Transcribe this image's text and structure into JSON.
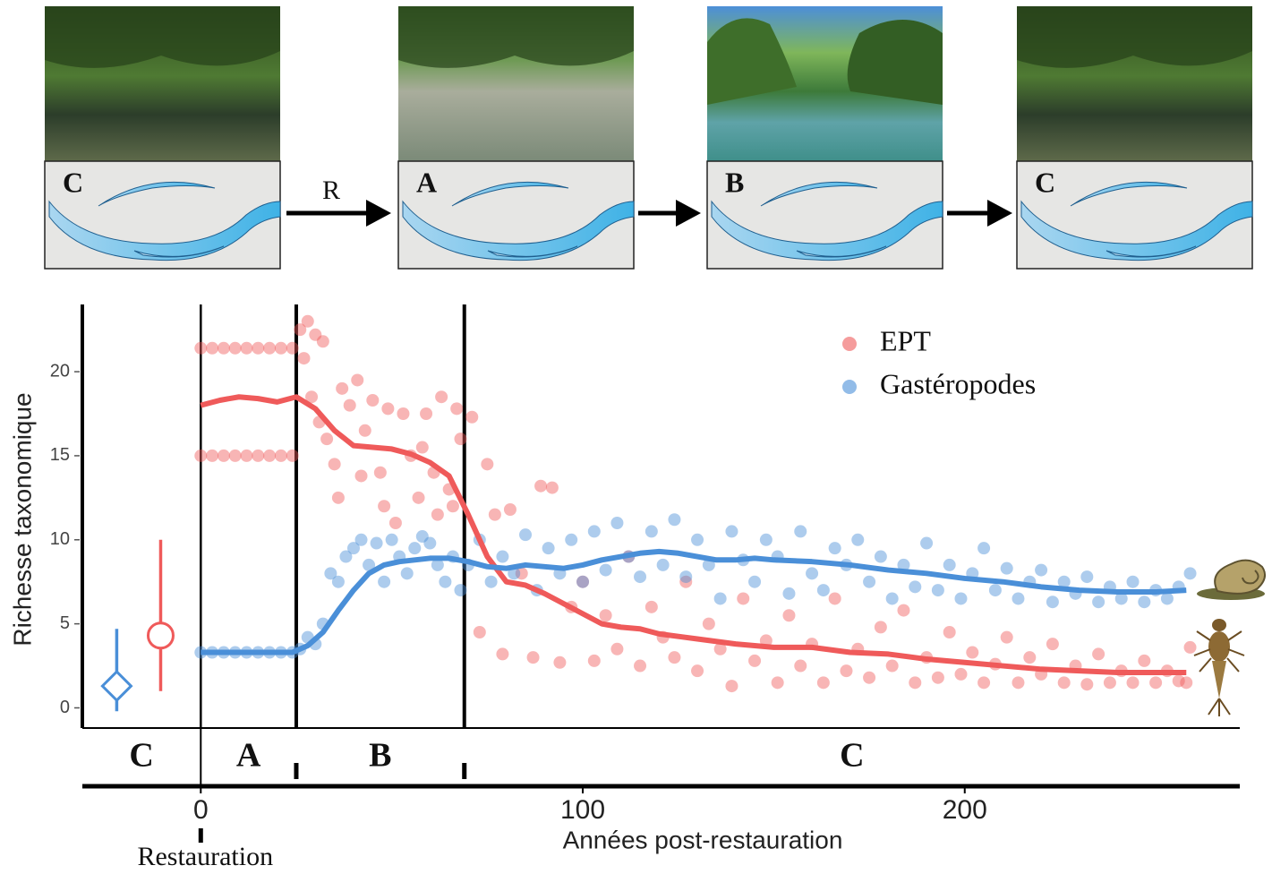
{
  "panel_labels": [
    "C",
    "A",
    "B",
    "C"
  ],
  "transition_label": "R",
  "chart_data": {
    "type": "scatter",
    "xlabel": "Années post-restauration",
    "ylabel": "Richesse taxonomique",
    "xlim": [
      -31,
      272
    ],
    "ylim": [
      -1.2,
      24
    ],
    "xticks": [
      0,
      100,
      200
    ],
    "yticks": [
      0,
      5,
      10,
      15,
      20
    ],
    "legend": "top-right",
    "event": {
      "x": 0,
      "label": "Restauration"
    },
    "phase_boundaries": [
      0,
      25,
      69
    ],
    "phase_labels": [
      "C",
      "A",
      "B",
      "C"
    ],
    "series": [
      {
        "name": "EPT",
        "color": "#ef5a5a",
        "reference": {
          "x": -10.5,
          "value": 4.3,
          "low": 1,
          "high": 10,
          "marker": "circle"
        },
        "points": [
          [
            0,
            21.4
          ],
          [
            3,
            21.4
          ],
          [
            6,
            21.4
          ],
          [
            9,
            21.4
          ],
          [
            12,
            21.4
          ],
          [
            15,
            21.4
          ],
          [
            18,
            21.4
          ],
          [
            21,
            21.4
          ],
          [
            24,
            21.4
          ],
          [
            0,
            15
          ],
          [
            3,
            15
          ],
          [
            6,
            15
          ],
          [
            9,
            15
          ],
          [
            12,
            15
          ],
          [
            15,
            15
          ],
          [
            18,
            15
          ],
          [
            21,
            15
          ],
          [
            24,
            15
          ],
          [
            26,
            22.5
          ],
          [
            28,
            23
          ],
          [
            30,
            22.2
          ],
          [
            32,
            21.8
          ],
          [
            27,
            20.8
          ],
          [
            29,
            18.5
          ],
          [
            31,
            17
          ],
          [
            33,
            16
          ],
          [
            35,
            14.5
          ],
          [
            37,
            19
          ],
          [
            39,
            18
          ],
          [
            41,
            19.5
          ],
          [
            43,
            16.5
          ],
          [
            45,
            18.3
          ],
          [
            47,
            14
          ],
          [
            49,
            17.8
          ],
          [
            51,
            11
          ],
          [
            53,
            17.5
          ],
          [
            55,
            15
          ],
          [
            57,
            12.5
          ],
          [
            59,
            17.5
          ],
          [
            61,
            14
          ],
          [
            63,
            18.5
          ],
          [
            65,
            13
          ],
          [
            67,
            17.8
          ],
          [
            68,
            16
          ],
          [
            36,
            12.5
          ],
          [
            42,
            13.8
          ],
          [
            48,
            12
          ],
          [
            58,
            15.5
          ],
          [
            62,
            11.5
          ],
          [
            66,
            12
          ],
          [
            71,
            17.3
          ],
          [
            73,
            4.5
          ],
          [
            75,
            14.5
          ],
          [
            77,
            11.5
          ],
          [
            79,
            3.2
          ],
          [
            81,
            11.8
          ],
          [
            84,
            8
          ],
          [
            87,
            3
          ],
          [
            89,
            13.2
          ],
          [
            92,
            13.1
          ],
          [
            94,
            2.7
          ],
          [
            97,
            6
          ],
          [
            100,
            7.5
          ],
          [
            103,
            2.8
          ],
          [
            106,
            5.5
          ],
          [
            109,
            3.5
          ],
          [
            112,
            9
          ],
          [
            115,
            2.5
          ],
          [
            118,
            6
          ],
          [
            121,
            4.2
          ],
          [
            124,
            3
          ],
          [
            127,
            7.5
          ],
          [
            130,
            2.2
          ],
          [
            133,
            5
          ],
          [
            136,
            3.5
          ],
          [
            139,
            1.3
          ],
          [
            142,
            6.5
          ],
          [
            145,
            2.8
          ],
          [
            148,
            4
          ],
          [
            151,
            1.5
          ],
          [
            154,
            5.5
          ],
          [
            157,
            2.5
          ],
          [
            160,
            3.8
          ],
          [
            163,
            1.5
          ],
          [
            166,
            6.5
          ],
          [
            169,
            2.2
          ],
          [
            172,
            3.5
          ],
          [
            175,
            1.8
          ],
          [
            178,
            4.8
          ],
          [
            181,
            2.5
          ],
          [
            184,
            5.8
          ],
          [
            187,
            1.5
          ],
          [
            190,
            3
          ],
          [
            193,
            1.8
          ],
          [
            196,
            4.5
          ],
          [
            199,
            2
          ],
          [
            202,
            3.3
          ],
          [
            205,
            1.5
          ],
          [
            208,
            2.6
          ],
          [
            211,
            4.2
          ],
          [
            214,
            1.5
          ],
          [
            217,
            3
          ],
          [
            220,
            2
          ],
          [
            223,
            3.8
          ],
          [
            226,
            1.5
          ],
          [
            229,
            2.5
          ],
          [
            232,
            1.4
          ],
          [
            235,
            3.2
          ],
          [
            238,
            1.5
          ],
          [
            241,
            2.2
          ],
          [
            244,
            1.5
          ],
          [
            247,
            2.8
          ],
          [
            250,
            1.5
          ],
          [
            253,
            2.2
          ],
          [
            256,
            1.6
          ],
          [
            259,
            3.6
          ],
          [
            258,
            1.5
          ]
        ],
        "trend": [
          [
            0,
            18
          ],
          [
            5,
            18.3
          ],
          [
            10,
            18.5
          ],
          [
            15,
            18.4
          ],
          [
            20,
            18.2
          ],
          [
            25,
            18.5
          ],
          [
            30,
            17.8
          ],
          [
            35,
            16.5
          ],
          [
            40,
            15.6
          ],
          [
            45,
            15.5
          ],
          [
            50,
            15.4
          ],
          [
            55,
            15.1
          ],
          [
            60,
            14.6
          ],
          [
            65,
            13.8
          ],
          [
            70,
            11.5
          ],
          [
            75,
            9
          ],
          [
            80,
            7.5
          ],
          [
            85,
            7.3
          ],
          [
            90,
            6.8
          ],
          [
            95,
            6.2
          ],
          [
            100,
            5.6
          ],
          [
            105,
            5
          ],
          [
            110,
            4.8
          ],
          [
            115,
            4.7
          ],
          [
            120,
            4.4
          ],
          [
            130,
            4.1
          ],
          [
            140,
            3.8
          ],
          [
            150,
            3.6
          ],
          [
            160,
            3.6
          ],
          [
            170,
            3.3
          ],
          [
            180,
            3.2
          ],
          [
            190,
            2.9
          ],
          [
            200,
            2.7
          ],
          [
            210,
            2.5
          ],
          [
            220,
            2.3
          ],
          [
            230,
            2.2
          ],
          [
            240,
            2.1
          ],
          [
            250,
            2.1
          ],
          [
            258,
            2.1
          ]
        ]
      },
      {
        "name": "Gastéropodes",
        "color": "#4a8fd8",
        "reference": {
          "x": -22,
          "value": 1.3,
          "low": -0.2,
          "high": 4.7,
          "marker": "diamond"
        },
        "points": [
          [
            0,
            3.3
          ],
          [
            3,
            3.3
          ],
          [
            6,
            3.3
          ],
          [
            9,
            3.3
          ],
          [
            12,
            3.3
          ],
          [
            15,
            3.3
          ],
          [
            18,
            3.3
          ],
          [
            21,
            3.3
          ],
          [
            24,
            3.3
          ],
          [
            26,
            3.5
          ],
          [
            28,
            4.2
          ],
          [
            30,
            3.8
          ],
          [
            32,
            5
          ],
          [
            34,
            8
          ],
          [
            36,
            7.5
          ],
          [
            38,
            9
          ],
          [
            40,
            9.5
          ],
          [
            42,
            10
          ],
          [
            44,
            8.5
          ],
          [
            46,
            9.8
          ],
          [
            48,
            7.5
          ],
          [
            50,
            10
          ],
          [
            52,
            9
          ],
          [
            54,
            8
          ],
          [
            56,
            9.5
          ],
          [
            58,
            10.2
          ],
          [
            60,
            9.8
          ],
          [
            62,
            8.5
          ],
          [
            64,
            7.5
          ],
          [
            66,
            9
          ],
          [
            68,
            7
          ],
          [
            70,
            8.5
          ],
          [
            73,
            10
          ],
          [
            76,
            7.5
          ],
          [
            79,
            9
          ],
          [
            82,
            8
          ],
          [
            85,
            10.3
          ],
          [
            88,
            7
          ],
          [
            91,
            9.5
          ],
          [
            94,
            8
          ],
          [
            97,
            10
          ],
          [
            100,
            7.5
          ],
          [
            103,
            10.5
          ],
          [
            106,
            8.2
          ],
          [
            109,
            11
          ],
          [
            112,
            9
          ],
          [
            115,
            7.8
          ],
          [
            118,
            10.5
          ],
          [
            121,
            8.5
          ],
          [
            124,
            11.2
          ],
          [
            127,
            7.8
          ],
          [
            130,
            10
          ],
          [
            133,
            8.5
          ],
          [
            136,
            6.5
          ],
          [
            139,
            10.5
          ],
          [
            142,
            8.8
          ],
          [
            145,
            7.5
          ],
          [
            148,
            10
          ],
          [
            151,
            9
          ],
          [
            154,
            6.8
          ],
          [
            157,
            10.5
          ],
          [
            160,
            8
          ],
          [
            163,
            7
          ],
          [
            166,
            9.5
          ],
          [
            169,
            8.5
          ],
          [
            172,
            10
          ],
          [
            175,
            7.5
          ],
          [
            178,
            9
          ],
          [
            181,
            6.5
          ],
          [
            184,
            8.5
          ],
          [
            187,
            7.2
          ],
          [
            190,
            9.8
          ],
          [
            193,
            7
          ],
          [
            196,
            8.5
          ],
          [
            199,
            6.5
          ],
          [
            202,
            8
          ],
          [
            205,
            9.5
          ],
          [
            208,
            7
          ],
          [
            211,
            8.3
          ],
          [
            214,
            6.5
          ],
          [
            217,
            7.5
          ],
          [
            220,
            8.2
          ],
          [
            223,
            6.3
          ],
          [
            226,
            7.5
          ],
          [
            229,
            6.8
          ],
          [
            232,
            7.8
          ],
          [
            235,
            6.3
          ],
          [
            238,
            7.2
          ],
          [
            241,
            6.5
          ],
          [
            244,
            7.5
          ],
          [
            247,
            6.3
          ],
          [
            250,
            7
          ],
          [
            253,
            6.5
          ],
          [
            256,
            7.2
          ],
          [
            259,
            8
          ]
        ],
        "trend": [
          [
            0,
            3.3
          ],
          [
            10,
            3.3
          ],
          [
            20,
            3.3
          ],
          [
            24,
            3.3
          ],
          [
            28,
            3.7
          ],
          [
            32,
            4.5
          ],
          [
            36,
            5.8
          ],
          [
            40,
            7
          ],
          [
            44,
            8
          ],
          [
            48,
            8.5
          ],
          [
            52,
            8.7
          ],
          [
            56,
            8.8
          ],
          [
            60,
            8.9
          ],
          [
            65,
            8.9
          ],
          [
            70,
            8.7
          ],
          [
            75,
            8.4
          ],
          [
            80,
            8.3
          ],
          [
            85,
            8.5
          ],
          [
            90,
            8.4
          ],
          [
            95,
            8.3
          ],
          [
            100,
            8.5
          ],
          [
            105,
            8.8
          ],
          [
            110,
            9
          ],
          [
            115,
            9.2
          ],
          [
            120,
            9.3
          ],
          [
            125,
            9.2
          ],
          [
            130,
            9
          ],
          [
            135,
            8.8
          ],
          [
            140,
            8.8
          ],
          [
            145,
            8.9
          ],
          [
            150,
            8.8
          ],
          [
            160,
            8.7
          ],
          [
            170,
            8.5
          ],
          [
            180,
            8.2
          ],
          [
            190,
            8
          ],
          [
            200,
            7.7
          ],
          [
            210,
            7.5
          ],
          [
            220,
            7.2
          ],
          [
            230,
            7
          ],
          [
            240,
            6.9
          ],
          [
            250,
            6.9
          ],
          [
            258,
            7
          ]
        ]
      }
    ]
  }
}
